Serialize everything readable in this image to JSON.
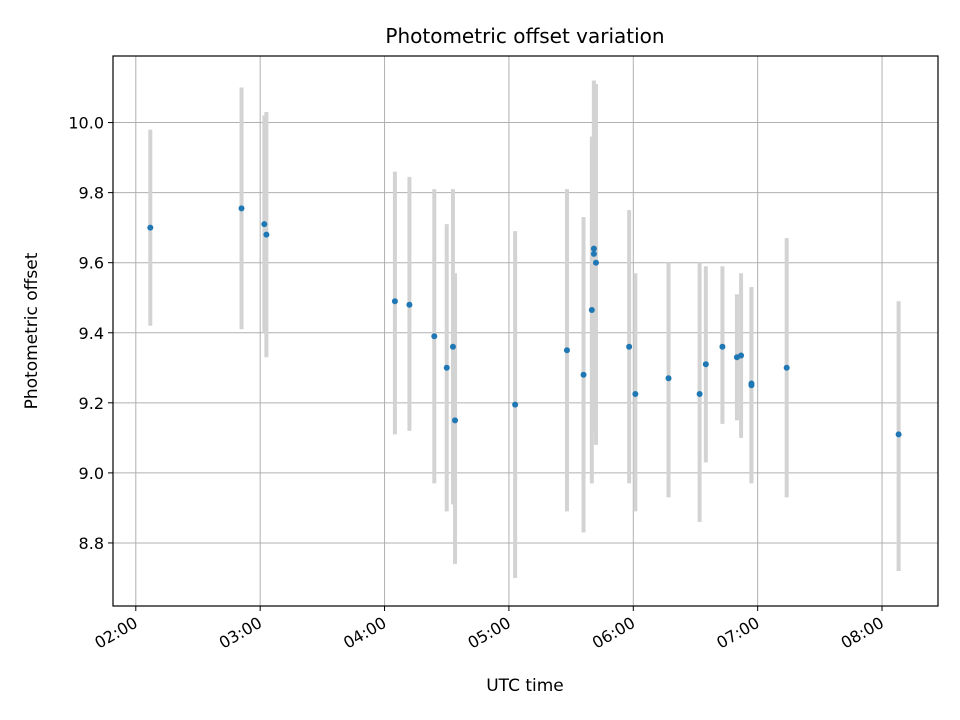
{
  "chart_data": {
    "type": "scatter",
    "title": "Photometric offset variation",
    "xlabel": "UTC time",
    "ylabel": "Photometric offset",
    "grid": true,
    "xlim": [
      "01:49",
      "08:27"
    ],
    "ylim": [
      8.62,
      10.19
    ],
    "x_ticks": [
      "02:00",
      "03:00",
      "04:00",
      "05:00",
      "06:00",
      "07:00",
      "08:00"
    ],
    "y_ticks": [
      "8.8",
      "9.0",
      "9.2",
      "9.4",
      "9.6",
      "9.8",
      "10.0"
    ],
    "colors": {
      "points": "#1f77b4",
      "errorbars": "#d3d3d3",
      "grid": "#b0b0b0"
    },
    "points": [
      {
        "x": "02:07",
        "y": 9.7,
        "low": 9.42,
        "high": 9.98
      },
      {
        "x": "02:51",
        "y": 9.755,
        "low": 9.41,
        "high": 10.1
      },
      {
        "x": "03:02",
        "y": 9.71,
        "low": 9.4,
        "high": 10.02
      },
      {
        "x": "03:03",
        "y": 9.68,
        "low": 9.33,
        "high": 10.03
      },
      {
        "x": "04:05",
        "y": 9.49,
        "low": 9.11,
        "high": 9.86
      },
      {
        "x": "04:12",
        "y": 9.48,
        "low": 9.12,
        "high": 9.845
      },
      {
        "x": "04:24",
        "y": 9.39,
        "low": 8.97,
        "high": 9.81
      },
      {
        "x": "04:30",
        "y": 9.3,
        "low": 8.89,
        "high": 9.71
      },
      {
        "x": "04:33",
        "y": 9.36,
        "low": 8.91,
        "high": 9.81
      },
      {
        "x": "04:34",
        "y": 9.15,
        "low": 8.74,
        "high": 9.57
      },
      {
        "x": "05:03",
        "y": 9.195,
        "low": 8.7,
        "high": 9.69
      },
      {
        "x": "05:28",
        "y": 9.35,
        "low": 8.89,
        "high": 9.81
      },
      {
        "x": "05:36",
        "y": 9.28,
        "low": 8.83,
        "high": 9.73
      },
      {
        "x": "05:40",
        "y": 9.465,
        "low": 8.97,
        "high": 9.96
      },
      {
        "x": "05:41",
        "y": 9.64,
        "low": 9.16,
        "high": 10.11
      },
      {
        "x": "05:41",
        "y": 9.625,
        "low": 9.12,
        "high": 10.12
      },
      {
        "x": "05:42",
        "y": 9.6,
        "low": 9.08,
        "high": 10.11
      },
      {
        "x": "05:58",
        "y": 9.36,
        "low": 8.97,
        "high": 9.75
      },
      {
        "x": "06:01",
        "y": 9.225,
        "low": 8.89,
        "high": 9.57
      },
      {
        "x": "06:17",
        "y": 9.27,
        "low": 8.93,
        "high": 9.6
      },
      {
        "x": "06:32",
        "y": 9.225,
        "low": 8.86,
        "high": 9.6
      },
      {
        "x": "06:35",
        "y": 9.31,
        "low": 9.03,
        "high": 9.59
      },
      {
        "x": "06:43",
        "y": 9.36,
        "low": 9.14,
        "high": 9.59
      },
      {
        "x": "06:50",
        "y": 9.33,
        "low": 9.15,
        "high": 9.51
      },
      {
        "x": "06:52",
        "y": 9.335,
        "low": 9.1,
        "high": 9.57
      },
      {
        "x": "06:57",
        "y": 9.25,
        "low": 8.97,
        "high": 9.53
      },
      {
        "x": "06:57",
        "y": 9.255,
        "low": 8.98,
        "high": 9.53
      },
      {
        "x": "07:14",
        "y": 9.3,
        "low": 8.93,
        "high": 9.67
      },
      {
        "x": "08:08",
        "y": 9.11,
        "low": 8.72,
        "high": 9.49
      }
    ]
  }
}
